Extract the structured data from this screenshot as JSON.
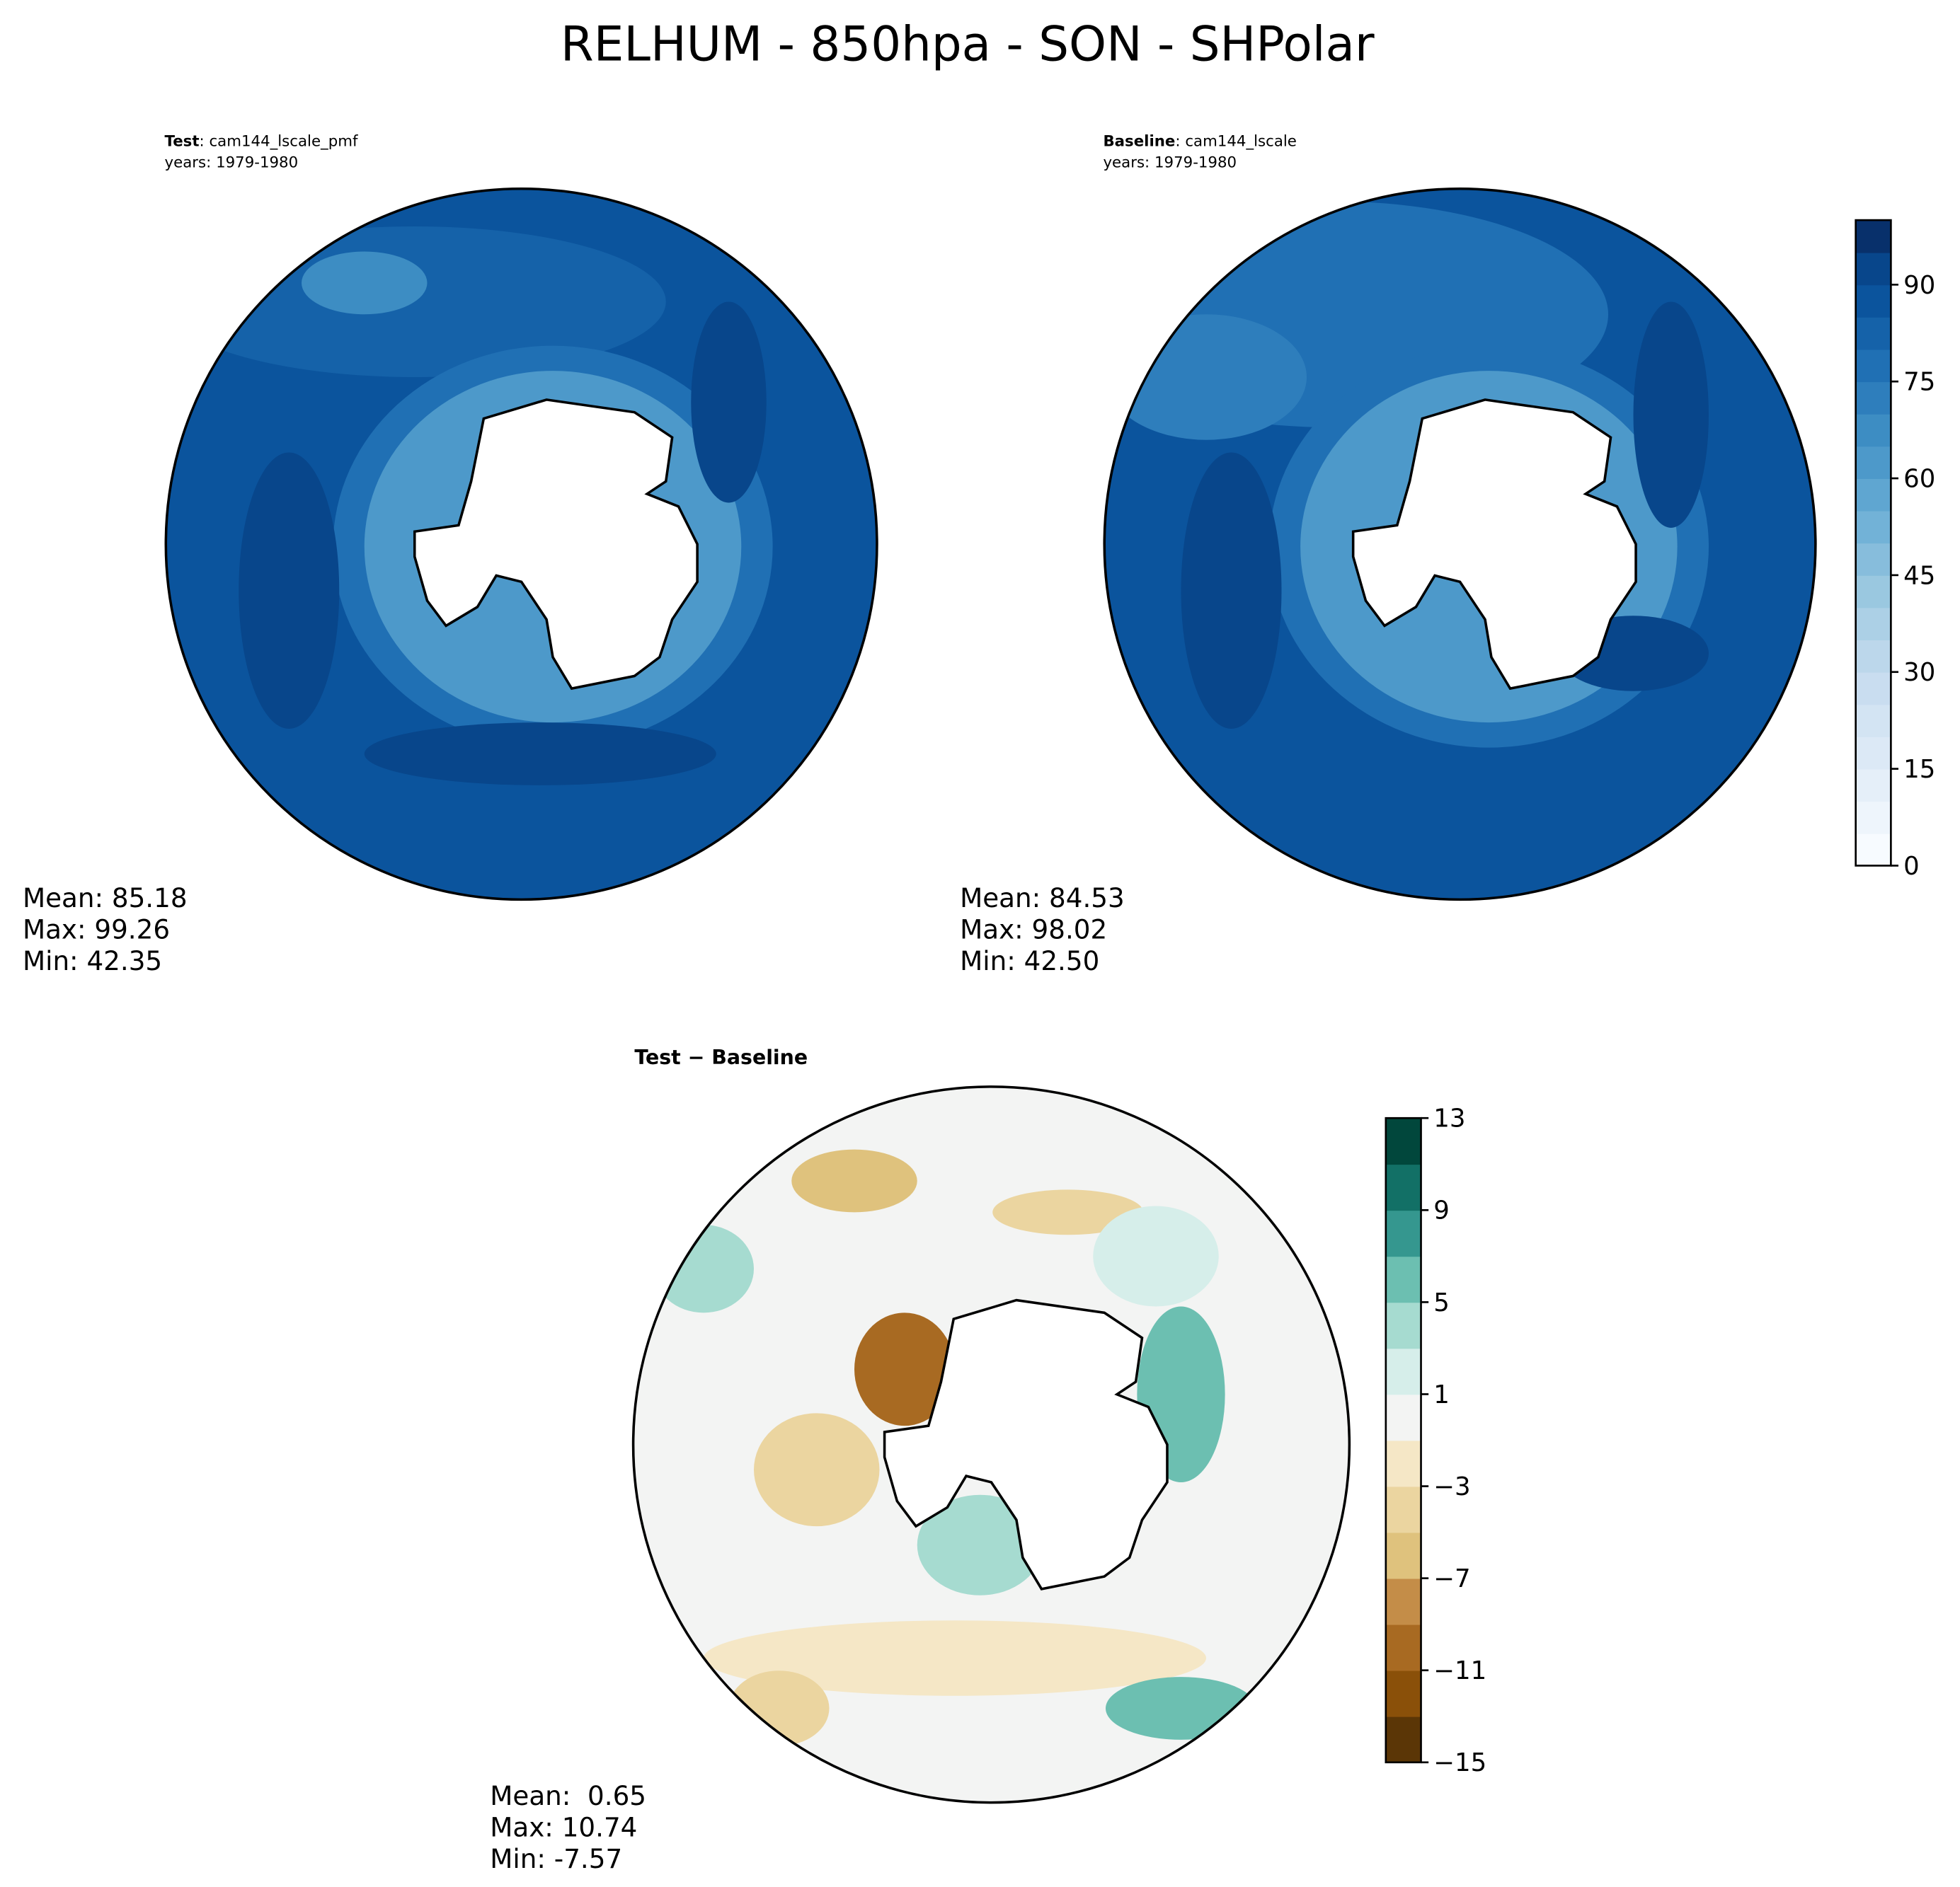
{
  "title": "RELHUM - 850hpa - SON - SHPolar",
  "panels": [
    {
      "case_label": "Test",
      "case_name": ": cam144_lscale_pmf",
      "years": "years: 1979-1980",
      "stats": [
        "Mean: 85.18",
        "Max: 99.26",
        "Min: 42.35"
      ]
    },
    {
      "case_label": "Baseline",
      "case_name": ": cam144_lscale",
      "years": "years: 1979-1980",
      "stats": [
        "Mean: 84.53",
        "Max: 98.02",
        "Min: 42.50"
      ]
    }
  ],
  "diff": {
    "title": "Test − Baseline",
    "stats": [
      "Mean:  0.65",
      "Max: 10.74",
      "Min: -7.57"
    ]
  },
  "colorbars": [
    {
      "lim": [
        0,
        100
      ],
      "ticks": [
        0,
        15,
        30,
        45,
        60,
        75,
        90
      ],
      "colors": [
        "#f7fbff",
        "#eef5fc",
        "#e5eff9",
        "#dce9f6",
        "#d3e4f3",
        "#c9ddf0",
        "#bcd7eb",
        "#acd0e6",
        "#9ac8e0",
        "#87bddc",
        "#72b2d7",
        "#5fa6d1",
        "#4d99ca",
        "#3d8dc3",
        "#2e7ebc",
        "#2070b4",
        "#1562a9",
        "#0b549d",
        "#08468b",
        "#08306b"
      ]
    },
    {
      "lim": [
        -15,
        13
      ],
      "ticks": [
        {
          "value": -15,
          "label": "−15"
        },
        {
          "value": -11,
          "label": "−11"
        },
        {
          "value": -7,
          "label": "−7"
        },
        {
          "value": -3,
          "label": "−3"
        },
        1,
        5,
        9,
        13
      ],
      "colors": [
        "#5b3606",
        "#8a5009",
        "#a86a22",
        "#c48d48",
        "#dfc27d",
        "#ebd5a0",
        "#f5e7c6",
        "#f3f4f3",
        "#d6eeea",
        "#a6dbd0",
        "#6cbfb1",
        "#35978f",
        "#127066",
        "#01473c"
      ]
    }
  ]
}
